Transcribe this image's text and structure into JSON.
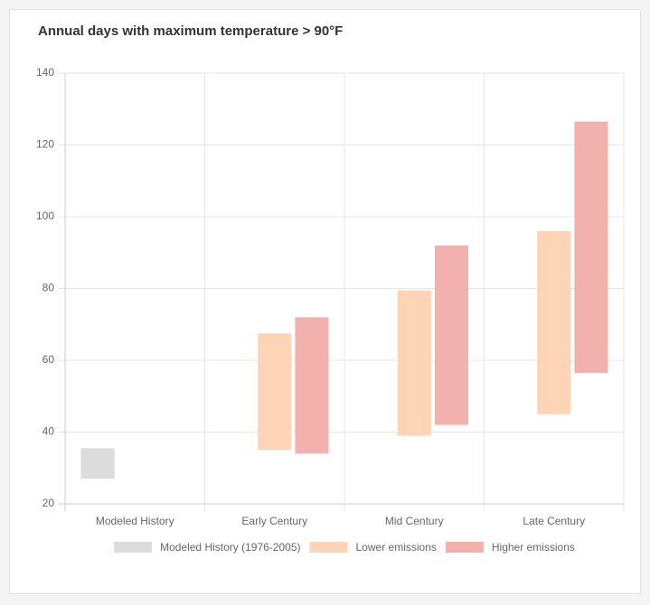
{
  "chart_data": {
    "type": "floating-bar",
    "title": "Annual days with maximum temperature > 90°F",
    "categories": [
      "Modeled History",
      "Early Century",
      "Mid Century",
      "Late Century"
    ],
    "series": [
      {
        "name": "Modeled History (1976-2005)",
        "color": "#dcdcdd",
        "values": [
          [
            27,
            35.5
          ],
          null,
          null,
          null
        ]
      },
      {
        "name": "Lower emissions",
        "color": "#fdd4b5",
        "values": [
          null,
          [
            35,
            67.5
          ],
          [
            39,
            79.5
          ],
          [
            45,
            96
          ]
        ]
      },
      {
        "name": "Higher emissions",
        "color": "#f2b1ad",
        "values": [
          null,
          [
            34,
            72
          ],
          [
            42,
            92
          ],
          [
            56.5,
            126.5
          ]
        ]
      }
    ],
    "ylim": [
      20,
      140
    ],
    "yticks": [
      20,
      40,
      60,
      80,
      100,
      120,
      140
    ],
    "grid": true,
    "legend": "bottom"
  }
}
